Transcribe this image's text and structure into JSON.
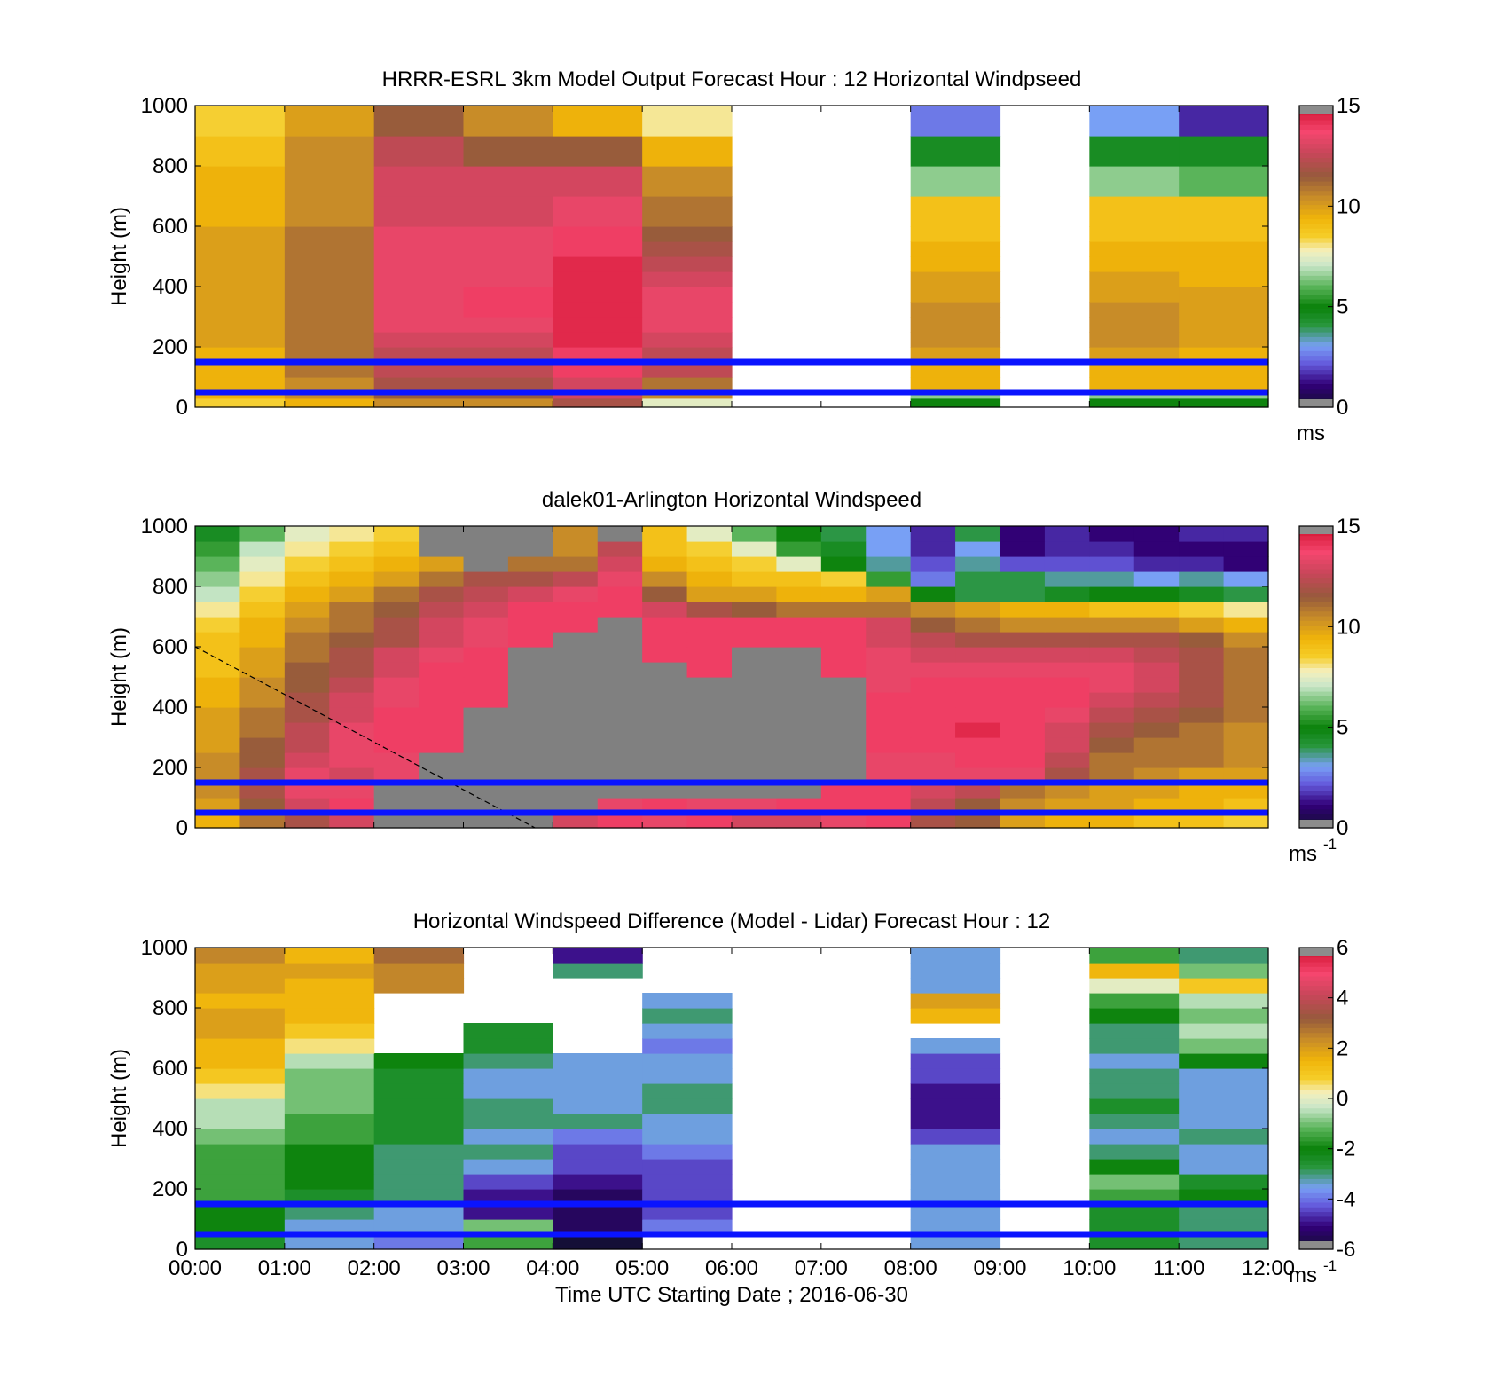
{
  "chart_data": [
    {
      "type": "heatmap",
      "title": "HRRR-ESRL 3km Model Output   Forecast Hour : 12 Horizontal Windpseed",
      "ylabel": "Height (m)",
      "xlabel": "",
      "xlim": [
        "00:00",
        "12:00"
      ],
      "ylim": [
        0,
        1000
      ],
      "yticks": [
        "0",
        "200",
        "400",
        "600",
        "800",
        "1000"
      ],
      "x_hours": [
        0,
        1,
        2,
        3,
        4,
        5,
        6,
        7,
        8,
        9,
        10,
        11,
        12
      ],
      "y_levels_m": [
        0,
        30,
        50,
        100,
        150,
        200,
        250,
        300,
        350,
        400,
        450,
        500,
        550,
        600,
        700,
        800,
        900,
        1000
      ],
      "values": [
        [
          8.5,
          9.5,
          10.5,
          10.5,
          12,
          7.5,
          null,
          null,
          5,
          null,
          5,
          5
        ],
        [
          9.5,
          10.5,
          11.5,
          11.5,
          13,
          10.5,
          null,
          null,
          6.5,
          null,
          6.5,
          6.5
        ],
        [
          9.5,
          10.5,
          12,
          12,
          13,
          11,
          null,
          null,
          9.5,
          null,
          9.5,
          9.5
        ],
        [
          9.5,
          11,
          12.5,
          12.5,
          14,
          12.5,
          null,
          null,
          9.5,
          null,
          9.5,
          9.5
        ],
        [
          9.5,
          11,
          12.5,
          12.5,
          14,
          12.5,
          null,
          null,
          10,
          null,
          10,
          9.5
        ],
        [
          10,
          11,
          13,
          13,
          14.5,
          13,
          null,
          null,
          10.5,
          null,
          10.5,
          10
        ],
        [
          10,
          11,
          13.5,
          13.5,
          14.5,
          13.5,
          null,
          null,
          10.5,
          null,
          10.5,
          10
        ],
        [
          10,
          11,
          13.5,
          14,
          14.5,
          13.5,
          null,
          null,
          10.5,
          null,
          10.5,
          10
        ],
        [
          10,
          11,
          13.5,
          14,
          14.5,
          13.5,
          null,
          null,
          10,
          null,
          10,
          10
        ],
        [
          10,
          11,
          13.5,
          13.5,
          14.5,
          13,
          null,
          null,
          10,
          null,
          10,
          9.5
        ],
        [
          10,
          11,
          13.5,
          13.5,
          14.5,
          12.5,
          null,
          null,
          9.5,
          null,
          9.5,
          9.5
        ],
        [
          10,
          11,
          13.5,
          13.5,
          14,
          12,
          null,
          null,
          9.5,
          null,
          9.5,
          9.5
        ],
        [
          10,
          11,
          13.5,
          13.5,
          14,
          11.5,
          null,
          null,
          9,
          null,
          9,
          9
        ],
        [
          9.5,
          10.5,
          13,
          13,
          13.5,
          11,
          null,
          null,
          9,
          null,
          9,
          9
        ],
        [
          9.5,
          10.5,
          13,
          13,
          13,
          10.5,
          null,
          null,
          6.5,
          null,
          6.5,
          6
        ],
        [
          9,
          10.5,
          12.5,
          11.5,
          11.5,
          9.5,
          null,
          null,
          4.5,
          null,
          4.5,
          4.5
        ],
        [
          8.5,
          10,
          11.5,
          10.5,
          9.5,
          8,
          null,
          null,
          2.5,
          null,
          3,
          1.5
        ]
      ],
      "colorbar": {
        "min": 0,
        "max": 15,
        "ticks": [
          "0",
          "5",
          "10",
          "15"
        ],
        "unit": "ms"
      },
      "reference_lines_m": [
        50,
        150
      ]
    },
    {
      "type": "heatmap",
      "title": "dalek01-Arlington  Horizontal Windspeed",
      "ylabel": "Height (m)",
      "xlabel": "",
      "xlim": [
        "00:00",
        "12:00"
      ],
      "ylim": [
        0,
        1000
      ],
      "yticks": [
        "0",
        "200",
        "400",
        "600",
        "800",
        "1000"
      ],
      "x_hours": [
        0,
        0.5,
        1,
        1.5,
        2,
        2.5,
        3,
        3.5,
        4,
        4.5,
        5,
        5.5,
        6,
        6.5,
        7,
        7.5,
        8,
        8.5,
        9,
        9.5,
        10,
        10.5,
        11,
        11.5,
        12
      ],
      "y_levels_m": [
        0,
        50,
        100,
        150,
        200,
        250,
        300,
        350,
        400,
        450,
        500,
        550,
        600,
        650,
        700,
        750,
        800,
        850,
        900,
        950,
        1000
      ],
      "values": [
        [
          9.5,
          11,
          12,
          13,
          "gap",
          "gap",
          "gap",
          "gap",
          13,
          14,
          13.5,
          14,
          13,
          13,
          13.5,
          14,
          12,
          11.5,
          10,
          9.5,
          9.5,
          9,
          9,
          8.5
        ],
        [
          10,
          11.5,
          13,
          14,
          "gap",
          "gap",
          "gap",
          "gap",
          "gap",
          13.5,
          14,
          13.5,
          13.5,
          14,
          14,
          14,
          12.5,
          11.5,
          10.5,
          10,
          10,
          9.5,
          9.5,
          9
        ],
        [
          10.5,
          12,
          13.5,
          13.5,
          "gap",
          "gap",
          "gap",
          "gap",
          "gap",
          "gap",
          "gap",
          "gap",
          "gap",
          "gap",
          14,
          14,
          13,
          12.5,
          11,
          10.5,
          10,
          10,
          9.5,
          9.5
        ],
        [
          10.5,
          12,
          13.5,
          13,
          13.5,
          "gap",
          "gap",
          "gap",
          "gap",
          "gap",
          "gap",
          "gap",
          "gap",
          "gap",
          "gap",
          13.5,
          13.5,
          13.5,
          13.5,
          12,
          11,
          10.5,
          10,
          10
        ],
        [
          10.5,
          11.5,
          13,
          13.5,
          13.5,
          "gap",
          "gap",
          "gap",
          "gap",
          "gap",
          "gap",
          "gap",
          "gap",
          "gap",
          "gap",
          13.5,
          13.5,
          14,
          14,
          12.5,
          11,
          11,
          11,
          10.5
        ],
        [
          10,
          11.5,
          12.5,
          13.5,
          14,
          14,
          "gap",
          "gap",
          "gap",
          "gap",
          "gap",
          "gap",
          "gap",
          "gap",
          "gap",
          14,
          14,
          14,
          14,
          13,
          11.5,
          11,
          11,
          10.5
        ],
        [
          10,
          11,
          12.5,
          13.5,
          14,
          14,
          "gap",
          "gap",
          "gap",
          "gap",
          "gap",
          "gap",
          "gap",
          "gap",
          "gap",
          14,
          14,
          14.5,
          14,
          13,
          12,
          11.5,
          11,
          10.5
        ],
        [
          10,
          11,
          12,
          13,
          14,
          14,
          "gap",
          "gap",
          "gap",
          "gap",
          "gap",
          "gap",
          "gap",
          "gap",
          "gap",
          14,
          14,
          14,
          14,
          13.5,
          12.5,
          12,
          11.5,
          11
        ],
        [
          9.5,
          10.5,
          12,
          13,
          13.5,
          14,
          14,
          "gap",
          "gap",
          "gap",
          "gap",
          "gap",
          "gap",
          "gap",
          "gap",
          14,
          14,
          14,
          14,
          14,
          13,
          12.5,
          12,
          11
        ],
        [
          9.5,
          10.5,
          11.5,
          12.5,
          13.5,
          14,
          14,
          "gap",
          "gap",
          "gap",
          "gap",
          "gap",
          "gap",
          "gap",
          "gap",
          13.5,
          14,
          14,
          14,
          14,
          13.5,
          13,
          12,
          11
        ],
        [
          9,
          10,
          11.5,
          12,
          13,
          14,
          14,
          "gap",
          "gap",
          "gap",
          "gap",
          14,
          "gap",
          "gap",
          14,
          13.5,
          13.5,
          13.5,
          13.5,
          13.5,
          13.5,
          13,
          12,
          11
        ],
        [
          9,
          10,
          11,
          12,
          13,
          13.5,
          14,
          "gap",
          "gap",
          "gap",
          14,
          14,
          "gap",
          "gap",
          14,
          13.5,
          13,
          13,
          13,
          13,
          13,
          12.5,
          12,
          11
        ],
        [
          9,
          9.5,
          11,
          11.5,
          12,
          13,
          13.5,
          14,
          "gap",
          "gap",
          14,
          14,
          14,
          14,
          14,
          13,
          12.5,
          12,
          12,
          12,
          12,
          12,
          11.5,
          10.5
        ],
        [
          8.5,
          9.5,
          10.5,
          11,
          12,
          13,
          13.5,
          14,
          14,
          "gap",
          14,
          14,
          14,
          14,
          14,
          13,
          11.5,
          11,
          10.5,
          10.5,
          10.5,
          10.5,
          10,
          9.5
        ],
        [
          8,
          9,
          10,
          11,
          11.5,
          12.5,
          13,
          14,
          14,
          14,
          13,
          12,
          11.5,
          11,
          11,
          11,
          10.5,
          10,
          9.5,
          9.5,
          9,
          9,
          8.5,
          8
        ],
        [
          7,
          8.5,
          9.5,
          10,
          11,
          12,
          12.5,
          13,
          13.5,
          14,
          11.5,
          10,
          10,
          9.5,
          9.5,
          10,
          5,
          4,
          4,
          4.5,
          5,
          5,
          4.5,
          4
        ],
        [
          6.5,
          8,
          9,
          9.5,
          10,
          11,
          12,
          12,
          12.5,
          13.5,
          10.5,
          9.5,
          9,
          9,
          8.5,
          5.5,
          2.5,
          4,
          4,
          3.5,
          3.5,
          3,
          3.5,
          3
        ],
        [
          6,
          7.5,
          8.5,
          9,
          9.5,
          10,
          "gap",
          11,
          11,
          13,
          9.5,
          9,
          8.5,
          7.5,
          5,
          3.5,
          2,
          3.5,
          2,
          2,
          2,
          1.5,
          1.5,
          1
        ],
        [
          5.5,
          7,
          8,
          8.5,
          9,
          "gap",
          "gap",
          "gap",
          10.5,
          12.5,
          9,
          8.5,
          7.5,
          5.5,
          4.5,
          3,
          1.5,
          3,
          1,
          1.5,
          1.5,
          1,
          1,
          1
        ],
        [
          4.5,
          6,
          7.5,
          8,
          8.5,
          "gap",
          "gap",
          "gap",
          10.5,
          "gap",
          9,
          7.5,
          6,
          5,
          4,
          3,
          1.5,
          4,
          1,
          1.5,
          1,
          1,
          1.5,
          1.5
        ]
      ],
      "note_gap_color": "#808080",
      "colorbar": {
        "min": 0,
        "max": 15,
        "ticks": [
          "0",
          "5",
          "10",
          "15"
        ],
        "unit": "ms",
        "unit_superscript": "-1"
      },
      "reference_lines_m": [
        50,
        150
      ],
      "dashed_line": {
        "from": [
          0,
          600
        ],
        "to": [
          3.8,
          0
        ]
      }
    },
    {
      "type": "heatmap",
      "title": "Horizontal Windspeed Difference (Model - Lidar) Forecast Hour : 12",
      "ylabel": "Height (m)",
      "xlabel": "Time UTC  Starting Date ; 2016-06-30",
      "xlim": [
        "00:00",
        "12:00"
      ],
      "ylim": [
        0,
        1000
      ],
      "xticks": [
        "00:00",
        "01:00",
        "02:00",
        "03:00",
        "04:00",
        "05:00",
        "06:00",
        "07:00",
        "08:00",
        "09:00",
        "10:00",
        "11:00",
        "12:00"
      ],
      "yticks": [
        "0",
        "200",
        "400",
        "600",
        "800",
        "1000"
      ],
      "x_hours": [
        0,
        1,
        2,
        3,
        4,
        5,
        6,
        7,
        8,
        9,
        10,
        11,
        12
      ],
      "y_levels_m": [
        0,
        50,
        100,
        150,
        200,
        250,
        300,
        350,
        400,
        450,
        500,
        550,
        600,
        650,
        700,
        750,
        800,
        850,
        900,
        950,
        1000
      ],
      "values": [
        [
          -2.5,
          -3.5,
          -4,
          -1.5,
          -6,
          null,
          null,
          null,
          -3.5,
          null,
          -2.5,
          -3
        ],
        [
          -2,
          -3.5,
          -3.5,
          -1,
          -5.5,
          -4,
          null,
          null,
          -3.5,
          null,
          -2.5,
          -3
        ],
        [
          -2,
          -3,
          -3.5,
          -5,
          -5.5,
          -4.5,
          null,
          null,
          -3.5,
          null,
          -2.5,
          -3
        ],
        [
          -1.5,
          -2.5,
          -3,
          -5,
          -5.5,
          -4.5,
          null,
          null,
          -3.5,
          null,
          -1.5,
          -2
        ],
        [
          -1.5,
          -2,
          -3,
          -4.5,
          -5,
          -4.5,
          null,
          null,
          -3.5,
          null,
          -1,
          -2.5
        ],
        [
          -1.5,
          -2,
          -3,
          -3.5,
          -4.5,
          -4.5,
          null,
          null,
          -3.5,
          null,
          -2,
          -3.5
        ],
        [
          -1.5,
          -2,
          -3,
          -3,
          -4.5,
          -4,
          null,
          null,
          -3.5,
          null,
          -3,
          -3.5
        ],
        [
          -1,
          -1.5,
          -2.5,
          -3.5,
          -4,
          -3.5,
          null,
          null,
          -4.5,
          null,
          -3.5,
          -3
        ],
        [
          -0.5,
          -1.5,
          -2.5,
          -3,
          -3,
          -3.5,
          null,
          null,
          -5,
          null,
          -3,
          -3.5
        ],
        [
          -0.5,
          -1,
          -2.5,
          -3,
          -3.5,
          -3,
          null,
          null,
          -5,
          null,
          -2.5,
          -3.5
        ],
        [
          0.5,
          -1,
          -2.5,
          -3.5,
          -3.5,
          -3,
          null,
          null,
          -5,
          null,
          -3,
          -3.5
        ],
        [
          1,
          -1,
          -2.5,
          -3.5,
          -3.5,
          -3.5,
          null,
          null,
          -4.5,
          null,
          -3,
          -3.5
        ],
        [
          1.5,
          -0.5,
          -2,
          -3,
          -3.5,
          -3.5,
          null,
          null,
          -4.5,
          null,
          -3.5,
          -2
        ],
        [
          1.5,
          0.5,
          null,
          -2.5,
          null,
          -4,
          null,
          null,
          -3.5,
          null,
          -3,
          -1
        ],
        [
          2,
          1,
          null,
          -2.5,
          null,
          -3.5,
          null,
          null,
          null,
          null,
          -3,
          -0.5
        ],
        [
          2,
          1.5,
          null,
          null,
          null,
          -3,
          null,
          null,
          1.5,
          null,
          -2,
          -1
        ],
        [
          1.5,
          1.5,
          null,
          null,
          null,
          -3.5,
          null,
          null,
          2,
          null,
          -1.5,
          -0.5
        ],
        [
          2,
          1.5,
          2.5,
          null,
          null,
          null,
          null,
          null,
          -3.5,
          null,
          0,
          1
        ],
        [
          2,
          2,
          2.5,
          null,
          -3,
          null,
          null,
          null,
          -3.5,
          null,
          1.5,
          -1
        ],
        [
          2.5,
          1.5,
          3,
          null,
          -5,
          null,
          null,
          null,
          -3.5,
          null,
          -1.5,
          -3
        ]
      ],
      "colorbar": {
        "min": -6,
        "max": 6,
        "ticks": [
          "-6",
          "-4",
          "-2",
          "0",
          "2",
          "4",
          "6"
        ],
        "unit": "ms",
        "unit_superscript": "-1"
      },
      "reference_lines_m": [
        50,
        150
      ]
    }
  ]
}
